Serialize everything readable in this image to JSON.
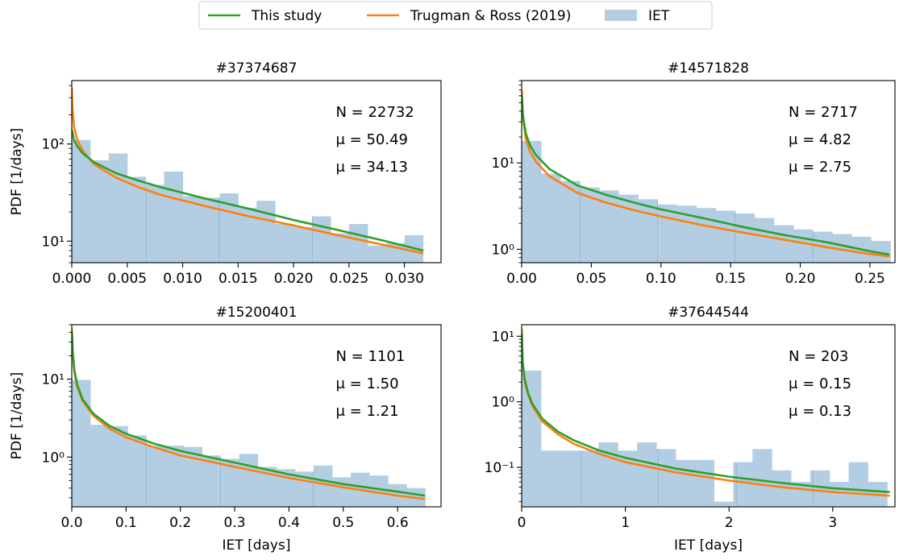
{
  "legend": {
    "placement": "top-center",
    "entries": [
      {
        "label": "This study",
        "color": "#2ca02c",
        "kind": "line"
      },
      {
        "label": "Trugman & Ross (2019)",
        "color": "#ff7f0e",
        "kind": "line"
      },
      {
        "label": "IET",
        "color": "#b3cde3",
        "kind": "bar"
      }
    ]
  },
  "chart_data": [
    {
      "type": "bar",
      "title": "#37374687",
      "xlabel": "",
      "ylabel": "PDF [1/days]",
      "yscale": "log",
      "xlim": [
        0,
        0.0333
      ],
      "ylim": [
        6,
        450
      ],
      "xticks": [
        0,
        0.005,
        0.01,
        0.015,
        0.02,
        0.025,
        0.03
      ],
      "xtick_labels": [
        "0.000",
        "0.005",
        "0.010",
        "0.015",
        "0.020",
        "0.025",
        "0.030"
      ],
      "yticks": [
        10,
        100
      ],
      "ytick_labels": [
        "10¹",
        "10²"
      ],
      "bin_width": 0.001667,
      "hist": [
        110,
        68,
        80,
        46,
        38,
        52,
        29,
        28,
        31,
        22,
        26,
        15,
        14,
        18,
        12,
        15,
        9,
        9.5,
        11.5
      ],
      "dividers": [
        0.0067,
        0.0133,
        0.0217
      ],
      "annotations": [
        {
          "text": "N = 22732",
          "color": "#1f77b4"
        },
        {
          "text": "μ = 50.49",
          "color": "#2ca02c"
        },
        {
          "text": "μ = 34.13",
          "color": "#ff7f0e"
        }
      ],
      "series": [
        {
          "name": "This study",
          "color": "#2ca02c",
          "x": [
            1e-05,
            0.0002,
            0.0005,
            0.001,
            0.002,
            0.004,
            0.006,
            0.008,
            0.012,
            0.016,
            0.02,
            0.024,
            0.028,
            0.0317
          ],
          "y": [
            140,
            110,
            95,
            80,
            65,
            50,
            42,
            36,
            27.5,
            21.5,
            16.5,
            13,
            10.2,
            8
          ]
        },
        {
          "name": "Trugman & Ross (2019)",
          "color": "#ff7f0e",
          "x": [
            1e-05,
            5e-05,
            0.0002,
            0.0005,
            0.001,
            0.002,
            0.004,
            0.006,
            0.008,
            0.012,
            0.016,
            0.02,
            0.024,
            0.028,
            0.0317
          ],
          "y": [
            380,
            250,
            150,
            110,
            85,
            62,
            45,
            36,
            30,
            23,
            18,
            14.5,
            11.5,
            9.2,
            7.5
          ]
        }
      ]
    },
    {
      "type": "bar",
      "title": "#14571828",
      "xlabel": "",
      "ylabel": "",
      "yscale": "log",
      "xlim": [
        0,
        0.268
      ],
      "ylim": [
        0.7,
        90
      ],
      "xticks": [
        0,
        0.05,
        0.1,
        0.15,
        0.2,
        0.25
      ],
      "xtick_labels": [
        "0.00",
        "0.05",
        "0.10",
        "0.15",
        "0.20",
        "0.25"
      ],
      "yticks": [
        1,
        10
      ],
      "ytick_labels": [
        "10⁰",
        "10¹"
      ],
      "bin_width": 0.01393,
      "hist": [
        18,
        7.5,
        6.2,
        5.2,
        4.8,
        4.3,
        3.8,
        3.3,
        3.2,
        3.0,
        2.8,
        2.6,
        2.3,
        1.9,
        1.7,
        1.6,
        1.5,
        1.4,
        1.25
      ],
      "dividers": [
        0.0418,
        0.0975,
        0.1532,
        0.209
      ],
      "annotations": [
        {
          "text": "N = 2717",
          "color": "#1f77b4"
        },
        {
          "text": "μ = 4.82",
          "color": "#2ca02c"
        },
        {
          "text": "μ = 2.75",
          "color": "#ff7f0e"
        }
      ],
      "series": [
        {
          "name": "This study",
          "color": "#2ca02c",
          "x": [
            0.0001,
            0.001,
            0.003,
            0.006,
            0.01,
            0.02,
            0.04,
            0.06,
            0.08,
            0.1,
            0.13,
            0.16,
            0.19,
            0.22,
            0.25,
            0.264
          ],
          "y": [
            60,
            35,
            22,
            16,
            12.5,
            8.5,
            5.5,
            4.3,
            3.5,
            2.9,
            2.3,
            1.8,
            1.45,
            1.2,
            0.95,
            0.87
          ]
        },
        {
          "name": "Trugman & Ross (2019)",
          "color": "#ff7f0e",
          "x": [
            0.0001,
            0.001,
            0.003,
            0.006,
            0.01,
            0.02,
            0.04,
            0.06,
            0.08,
            0.1,
            0.13,
            0.16,
            0.19,
            0.22,
            0.25,
            0.264
          ],
          "y": [
            70,
            32,
            19,
            13.5,
            10.5,
            7,
            4.5,
            3.5,
            2.85,
            2.4,
            1.9,
            1.55,
            1.28,
            1.05,
            0.88,
            0.83
          ]
        }
      ]
    },
    {
      "type": "bar",
      "title": "#15200401",
      "xlabel": "IET [days]",
      "ylabel": "PDF [1/days]",
      "yscale": "log",
      "xlim": [
        0,
        0.68
      ],
      "ylim": [
        0.23,
        50
      ],
      "xticks": [
        0,
        0.1,
        0.2,
        0.3,
        0.4,
        0.5,
        0.6
      ],
      "xtick_labels": [
        "0.0",
        "0.1",
        "0.2",
        "0.3",
        "0.4",
        "0.5",
        "0.6"
      ],
      "yticks": [
        1,
        10
      ],
      "ytick_labels": [
        "10⁰",
        "10¹"
      ],
      "bin_width": 0.03425,
      "hist": [
        9.8,
        2.6,
        2.5,
        1.9,
        1.4,
        1.4,
        1.35,
        1.05,
        0.95,
        1.1,
        0.75,
        0.7,
        0.65,
        0.78,
        0.55,
        0.63,
        0.58,
        0.45,
        0.4
      ],
      "dividers": [
        0.137,
        0.274,
        0.445
      ],
      "annotations": [
        {
          "text": "N = 1101",
          "color": "#1f77b4"
        },
        {
          "text": "μ = 1.50",
          "color": "#2ca02c"
        },
        {
          "text": "μ = 1.21",
          "color": "#ff7f0e"
        }
      ],
      "series": [
        {
          "name": "This study",
          "color": "#2ca02c",
          "x": [
            0.0002,
            0.002,
            0.005,
            0.01,
            0.02,
            0.04,
            0.07,
            0.1,
            0.15,
            0.2,
            0.3,
            0.4,
            0.5,
            0.6,
            0.65
          ],
          "y": [
            40,
            22,
            13,
            8.5,
            5.5,
            3.6,
            2.5,
            2.0,
            1.5,
            1.2,
            0.85,
            0.6,
            0.45,
            0.36,
            0.32
          ]
        },
        {
          "name": "Trugman & Ross (2019)",
          "color": "#ff7f0e",
          "x": [
            0.0002,
            0.002,
            0.005,
            0.01,
            0.02,
            0.04,
            0.07,
            0.1,
            0.15,
            0.2,
            0.3,
            0.4,
            0.5,
            0.6,
            0.65
          ],
          "y": [
            45,
            20,
            12,
            8,
            5.2,
            3.4,
            2.3,
            1.8,
            1.35,
            1.05,
            0.75,
            0.54,
            0.41,
            0.32,
            0.29
          ]
        }
      ]
    },
    {
      "type": "bar",
      "title": "#37644544",
      "xlabel": "IET [days]",
      "ylabel": "",
      "yscale": "log",
      "xlim": [
        0,
        3.6
      ],
      "ylim": [
        0.025,
        15
      ],
      "xticks": [
        0,
        1,
        2,
        3
      ],
      "xtick_labels": [
        "0",
        "1",
        "2",
        "3"
      ],
      "yticks": [
        0.1,
        1,
        10
      ],
      "ytick_labels": [
        "10⁻¹",
        "10⁰",
        "10¹"
      ],
      "bin_width": 0.1855,
      "hist": [
        3.0,
        0.18,
        0.18,
        0.18,
        0.24,
        0.18,
        0.24,
        0.19,
        0.13,
        0.13,
        0.03,
        0.12,
        0.19,
        0.09,
        0.06,
        0.09,
        0.06,
        0.12,
        0.06
      ],
      "dividers": [
        0.576,
        1.315,
        2.07,
        2.81
      ],
      "annotations": [
        {
          "text": "N = 203",
          "color": "#1f77b4"
        },
        {
          "text": "μ = 0.15",
          "color": "#2ca02c"
        },
        {
          "text": "μ = 0.13",
          "color": "#ff7f0e"
        }
      ],
      "series": [
        {
          "name": "This study",
          "color": "#2ca02c",
          "x": [
            0.001,
            0.01,
            0.03,
            0.06,
            0.1,
            0.2,
            0.35,
            0.5,
            0.75,
            1,
            1.5,
            2,
            2.5,
            3,
            3.55
          ],
          "y": [
            11,
            4,
            2.2,
            1.4,
            0.95,
            0.55,
            0.35,
            0.26,
            0.18,
            0.14,
            0.095,
            0.072,
            0.058,
            0.048,
            0.042
          ]
        },
        {
          "name": "Trugman & Ross (2019)",
          "color": "#ff7f0e",
          "x": [
            0.001,
            0.01,
            0.03,
            0.06,
            0.1,
            0.2,
            0.35,
            0.5,
            0.75,
            1,
            1.5,
            2,
            2.5,
            3,
            3.55
          ],
          "y": [
            13,
            3.8,
            2.0,
            1.3,
            0.88,
            0.5,
            0.32,
            0.23,
            0.16,
            0.12,
            0.083,
            0.063,
            0.05,
            0.042,
            0.037
          ]
        }
      ]
    }
  ]
}
